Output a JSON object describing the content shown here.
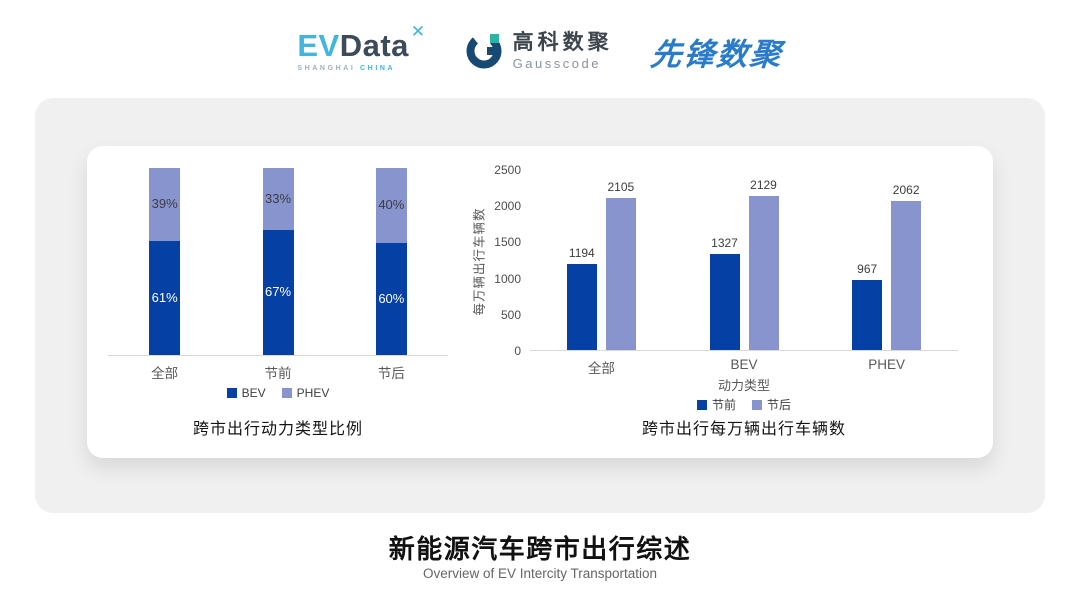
{
  "header": {
    "evdata": {
      "ev": "EV",
      "data": "Data",
      "mark": "✕",
      "sub_left": "SHANGHAI",
      "sub_right": "CHINA"
    },
    "gausscode": {
      "cn": "高科数聚",
      "en": "Gausscode"
    },
    "xianfeng": {
      "text": "先锋数聚"
    }
  },
  "chart_data": [
    {
      "type": "bar",
      "variant": "stacked-percent",
      "title": "跨市出行动力类型比例",
      "categories": [
        "全部",
        "节前",
        "节后"
      ],
      "series": [
        {
          "name": "BEV",
          "values": [
            61,
            67,
            60
          ],
          "color": "#0540a5",
          "label_color": "#ffffff"
        },
        {
          "name": "PHEV",
          "values": [
            39,
            33,
            40
          ],
          "color": "#8894cd",
          "label_color": "#3c3c46"
        }
      ],
      "value_suffix": "%",
      "ylim": [
        0,
        100
      ],
      "legend_position": "bottom",
      "grid": false
    },
    {
      "type": "bar",
      "variant": "grouped",
      "title": "跨市出行每万辆出行车辆数",
      "xlabel": "动力类型",
      "ylabel": "每万辆出行车辆数",
      "categories": [
        "全部",
        "BEV",
        "PHEV"
      ],
      "series": [
        {
          "name": "节前",
          "values": [
            1194,
            1327,
            967
          ],
          "color": "#0540a5"
        },
        {
          "name": "节后",
          "values": [
            2105,
            2129,
            2062
          ],
          "color": "#8894cd"
        }
      ],
      "yticks": [
        0,
        500,
        1000,
        1500,
        2000,
        2500
      ],
      "ylim": [
        0,
        2500
      ],
      "legend_position": "bottom",
      "grid": false
    }
  ],
  "footer": {
    "title": "新能源汽车跨市出行综述",
    "subtitle": "Overview of EV Intercity Transportation"
  },
  "colors": {
    "bev_dark": "#0540a5",
    "phev_light": "#8894cd",
    "card_bg": "#f0f0f0",
    "panel_bg": "#ffffff",
    "axis_line": "#d9d9d9"
  }
}
